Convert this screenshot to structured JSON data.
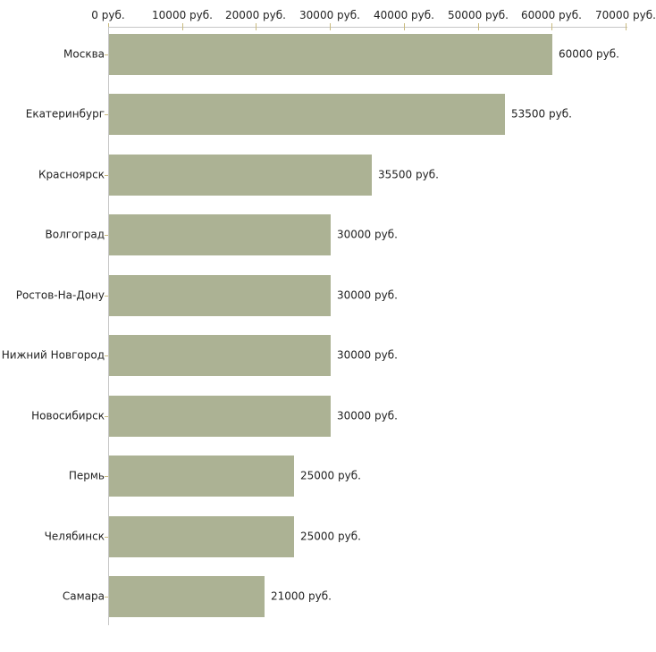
{
  "chart_data": {
    "type": "bar",
    "orientation": "horizontal",
    "title": "",
    "xlabel": "",
    "ylabel": "",
    "unit": "руб.",
    "categories": [
      "Москва",
      "Екатеринбург",
      "Красноярск",
      "Волгоград",
      "Ростов-На-Дону",
      "Нижний Новгород",
      "Новосибирск",
      "Пермь",
      "Челябинск",
      "Самара"
    ],
    "values": [
      60000,
      53500,
      35500,
      30000,
      30000,
      30000,
      30000,
      25000,
      25000,
      21000
    ],
    "value_labels": [
      "60000 руб.",
      "53500 руб.",
      "35500 руб.",
      "30000 руб.",
      "30000 руб.",
      "30000 руб.",
      "30000 руб.",
      "25000 руб.",
      "25000 руб.",
      "21000 руб."
    ],
    "x_tick_labels": [
      "0 руб.",
      "10000 руб.",
      "20000 руб.",
      "30000 руб.",
      "40000 руб.",
      "50000 руб.",
      "60000 руб.",
      "70000 руб."
    ],
    "x_tick_values": [
      0,
      10000,
      20000,
      30000,
      40000,
      50000,
      60000,
      70000
    ],
    "xlim": [
      0,
      70000
    ],
    "grid": false,
    "legend": false,
    "colors": {
      "bar_fill": "#acb294",
      "axis_line": "#c6c6c6",
      "tick_mark": "#c9ba7e",
      "text": "#222222",
      "background": "#ffffff"
    }
  }
}
